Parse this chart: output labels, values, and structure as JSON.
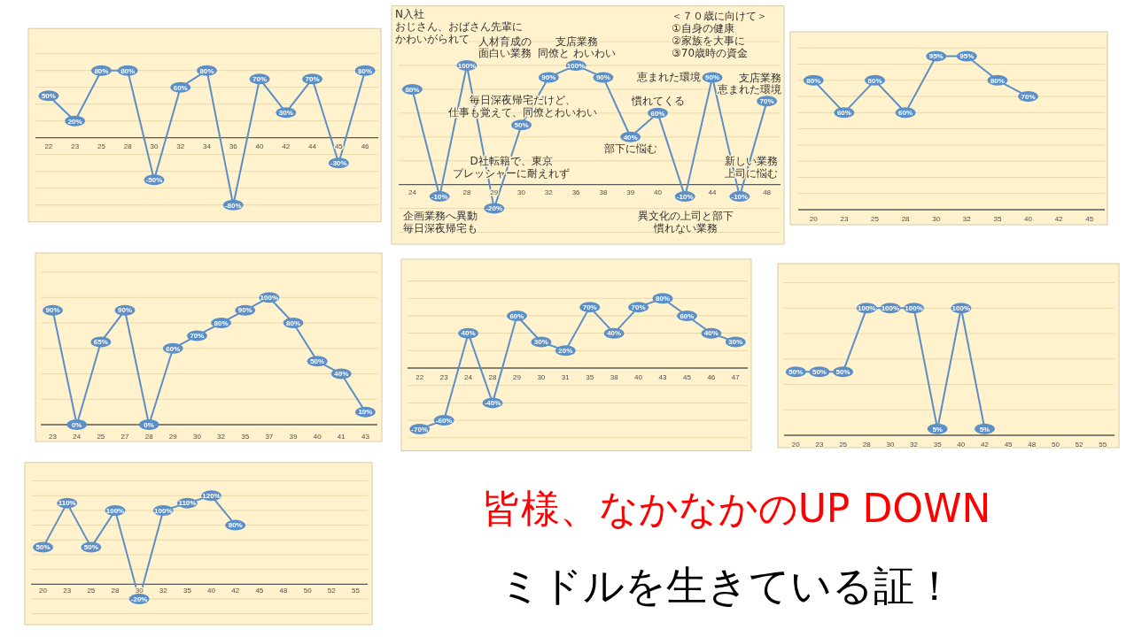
{
  "chart_data": [
    {
      "type": "line",
      "categories": [
        "22",
        "23",
        "25",
        "28",
        "30",
        "32",
        "34",
        "36",
        "40",
        "42",
        "44",
        "45",
        "46"
      ],
      "series": [
        {
          "color": "#5b8fc8",
          "values": [
            50,
            20,
            80,
            80,
            -50,
            60,
            80,
            -80,
            70,
            30,
            70,
            -30,
            80
          ],
          "value_labels": [
            "50%",
            "20%",
            "80%",
            "80%",
            "-50%",
            "60%",
            "80%",
            "-80%",
            "70%",
            "30%",
            "70%",
            "-30%",
            "80%"
          ]
        }
      ],
      "ylim": [
        -100,
        130
      ],
      "yticks": [
        {
          "value": -80,
          "label": null
        },
        {
          "value": -60,
          "label": null
        },
        {
          "value": -40,
          "label": null
        },
        {
          "value": -20,
          "label": null
        },
        {
          "value": 20,
          "label": null
        },
        {
          "value": 40,
          "label": null
        },
        {
          "value": 60,
          "label": null
        },
        {
          "value": 80,
          "label": null
        },
        {
          "value": 100,
          "label": null
        }
      ],
      "grid": "y",
      "marker": "circle",
      "tick_labels": "x"
    },
    {
      "type": "line",
      "categories": [
        "24",
        null,
        "28",
        "29",
        "30",
        "32",
        "36",
        "38",
        "39",
        "40",
        null,
        "44",
        null,
        "48"
      ],
      "series": [
        {
          "color": "#5b8fc8",
          "values": [
            80,
            -10,
            100,
            -20,
            50,
            90,
            100,
            90,
            40,
            60,
            -10,
            90,
            -10,
            70
          ],
          "value_labels": [
            "80%",
            "-10%",
            "100%",
            "-20%",
            "50%",
            "90%",
            "100%",
            "90%",
            "40%",
            "60%",
            "-10%",
            "90%",
            "-10%",
            "70%"
          ]
        }
      ],
      "ylim": [
        -50,
        150
      ],
      "yticks": [
        {
          "value": -40,
          "label": null
        },
        {
          "value": -20,
          "label": null
        },
        {
          "value": 20,
          "label": null
        },
        {
          "value": 40,
          "label": null
        },
        {
          "value": 60,
          "label": null
        },
        {
          "value": 80,
          "label": null
        },
        {
          "value": 100,
          "label": null
        },
        {
          "value": 120,
          "label": null
        }
      ],
      "grid": "y",
      "marker": "circle",
      "tick_labels": "x",
      "annotations": [
        "N入社",
        "おじさん、おばさん先輩に",
        "かわいがられて",
        "企画業務へ異動",
        "毎日深夜帰宅も",
        "人材育成の",
        "面白い業務",
        "D社転籍で、東京",
        "プレッシャーに耐えれず",
        "毎日深夜帰宅だけど、",
        "仕事も覚えて、同僚とわいわい",
        "支店業務",
        "同僚と わいわい",
        "部下に悩む",
        "慣れてくる",
        "異文化の上司と部下",
        "慣れない業務",
        "恵まれた環境",
        "新しい業務",
        "上司に悩む",
        "支店業務",
        "恵まれた環境",
        "＜７０歳に向けて＞",
        "①自身の健康",
        "②家族を大事に",
        "③70歳時の資金"
      ]
    },
    {
      "type": "line",
      "categories": [
        "20",
        "23",
        "25",
        "28",
        "30",
        "32",
        "35",
        "40",
        "42",
        "45"
      ],
      "series": [
        {
          "color": "#5b8fc8",
          "values": [
            80,
            60,
            80,
            60,
            95,
            95,
            80,
            70,
            null,
            null
          ],
          "value_labels": [
            "80%",
            "60%",
            "80%",
            "60%",
            "95%",
            "95%",
            "80%",
            "70%",
            null,
            null
          ]
        }
      ],
      "ylim": [
        0,
        110
      ],
      "yticks": [
        {
          "value": 10,
          "label": null
        },
        {
          "value": 20,
          "label": null
        },
        {
          "value": 30,
          "label": null
        },
        {
          "value": 40,
          "label": null
        },
        {
          "value": 50,
          "label": null
        },
        {
          "value": 60,
          "label": null
        },
        {
          "value": 70,
          "label": null
        },
        {
          "value": 80,
          "label": null
        },
        {
          "value": 90,
          "label": null
        },
        {
          "value": 100,
          "label": null
        }
      ],
      "grid": "y",
      "marker": "circle",
      "tick_labels": "x"
    },
    {
      "type": "line",
      "categories": [
        "23",
        "24",
        "25",
        "27",
        "28",
        "29",
        "30",
        "32",
        "35",
        "37",
        "39",
        "40",
        "41",
        "43"
      ],
      "series": [
        {
          "color": "#5b8fc8",
          "values": [
            90,
            0,
            65,
            90,
            0,
            60,
            70,
            80,
            90,
            100,
            80,
            50,
            40,
            10
          ],
          "value_labels": [
            "90%",
            "0%",
            "65%",
            "90%",
            "0%",
            "60%",
            "70%",
            "80%",
            "90%",
            "100%",
            "80%",
            "50%",
            "40%",
            "10%"
          ]
        }
      ],
      "ylim": [
        0,
        135
      ],
      "yticks": [
        {
          "value": 20,
          "label": null
        },
        {
          "value": 40,
          "label": null
        },
        {
          "value": 60,
          "label": null
        },
        {
          "value": 80,
          "label": null
        },
        {
          "value": 100,
          "label": null
        },
        {
          "value": 120,
          "label": null
        }
      ],
      "grid": "y",
      "marker": "circle",
      "tick_labels": "x"
    },
    {
      "type": "line",
      "categories": [
        "22",
        "23",
        "24",
        "28",
        "29",
        "30",
        "31",
        "35",
        "38",
        "40",
        "43",
        "45",
        "46",
        "47"
      ],
      "series": [
        {
          "color": "#5b8fc8",
          "values": [
            -70,
            -60,
            40,
            -40,
            60,
            30,
            20,
            70,
            40,
            70,
            80,
            60,
            40,
            30
          ],
          "value_labels": [
            "-70%",
            "-60%",
            "40%",
            "-40%",
            "60%",
            "30%",
            "20%",
            "70%",
            "40%",
            "70%",
            "80%",
            "60%",
            "40%",
            "30%"
          ]
        }
      ],
      "ylim": [
        -95,
        125
      ],
      "yticks": [
        {
          "value": -80,
          "label": null
        },
        {
          "value": -60,
          "label": null
        },
        {
          "value": -40,
          "label": null
        },
        {
          "value": -20,
          "label": null
        },
        {
          "value": 20,
          "label": null
        },
        {
          "value": 40,
          "label": null
        },
        {
          "value": 60,
          "label": null
        },
        {
          "value": 80,
          "label": null
        },
        {
          "value": 100,
          "label": null
        }
      ],
      "grid": "y",
      "marker": "circle",
      "tick_labels": "x"
    },
    {
      "type": "line",
      "categories": [
        "20",
        "23",
        "25",
        "28",
        "30",
        "32",
        "35",
        "40",
        "42",
        "45",
        "48",
        "50",
        "52",
        "55"
      ],
      "series": [
        {
          "color": "#5b8fc8",
          "values": [
            50,
            50,
            50,
            100,
            100,
            100,
            5,
            100,
            5,
            null,
            null,
            null,
            null,
            null
          ],
          "value_labels": [
            "50%",
            "50%",
            "50%",
            "100%",
            "100%",
            "100%",
            "5%",
            "100%",
            "5%",
            null,
            null,
            null,
            null,
            null
          ]
        }
      ],
      "ylim": [
        0,
        135
      ],
      "yticks": [
        {
          "value": 20,
          "label": null
        },
        {
          "value": 40,
          "label": null
        },
        {
          "value": 60,
          "label": null
        },
        {
          "value": 80,
          "label": null
        },
        {
          "value": 100,
          "label": null
        },
        {
          "value": 120,
          "label": null
        }
      ],
      "grid": "y",
      "marker": "circle",
      "tick_labels": "x"
    },
    {
      "type": "line",
      "categories": [
        "20",
        "23",
        "25",
        "28",
        "30",
        "32",
        "35",
        "40",
        "42",
        "45",
        "48",
        "50",
        "52",
        "55"
      ],
      "series": [
        {
          "color": "#5b8fc8",
          "values": [
            50,
            110,
            50,
            100,
            -20,
            100,
            110,
            120,
            80,
            null,
            null,
            null,
            null,
            null
          ],
          "value_labels": [
            "50%",
            "110%",
            "50%",
            "100%",
            "-20%",
            "100%",
            "110%",
            "120%",
            "80%",
            null,
            null,
            null,
            null,
            null
          ]
        }
      ],
      "ylim": [
        -55,
        165
      ],
      "yticks": [
        {
          "value": -40,
          "label": null
        },
        {
          "value": -20,
          "label": null
        },
        {
          "value": 20,
          "label": null
        },
        {
          "value": 40,
          "label": null
        },
        {
          "value": 60,
          "label": null
        },
        {
          "value": 80,
          "label": null
        },
        {
          "value": 100,
          "label": null
        },
        {
          "value": 120,
          "label": null
        },
        {
          "value": 140,
          "label": null
        }
      ],
      "grid": "y",
      "marker": "circle",
      "tick_labels": "x"
    },
    {
      "type": "other",
      "annotations": [
        "皆様、なかなかのUP DOWN",
        "ミドルを生きている証！"
      ]
    }
  ]
}
